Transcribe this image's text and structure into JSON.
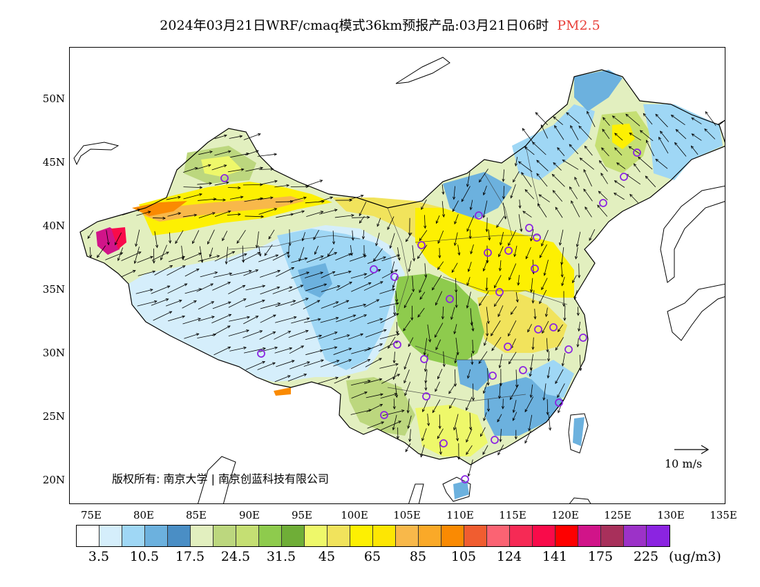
{
  "title": {
    "main": "2024年03月21日WRF/cmaq模式36km预报产品:03月21日06时",
    "variable": "PM2.5"
  },
  "map": {
    "lat_labels": [
      "50N",
      "45N",
      "40N",
      "35N",
      "30N",
      "25N",
      "20N"
    ],
    "lon_labels": [
      "75E",
      "80E",
      "85E",
      "90E",
      "95E",
      "100E",
      "105E",
      "110E",
      "115E",
      "120E",
      "125E",
      "130E",
      "135E"
    ],
    "copyright": "版权所有: 南京大学 | 南京创蓝科技有限公司",
    "wind_reference": "10 m/s",
    "icons": [
      "wind-vector-arrow",
      "station-circle-marker",
      "reference-arrow"
    ]
  },
  "legend": {
    "colors": [
      "#ffffff",
      "#d5eefb",
      "#9fd7f5",
      "#6cb1de",
      "#4a8ec5",
      "#e2efbf",
      "#bcd77e",
      "#c5df73",
      "#8ecb4d",
      "#6fae37",
      "#eef86a",
      "#f1e35c",
      "#fdf002",
      "#fde603",
      "#f8b84a",
      "#faa928",
      "#fa8a02",
      "#f05d30",
      "#fb6373",
      "#f62a55",
      "#f90b4a",
      "#fe0000",
      "#d11489",
      "#a8305b",
      "#9c32c8",
      "#8b24e1"
    ],
    "labels": [
      "3.5",
      "10.5",
      "17.5",
      "24.5",
      "31.5",
      "45",
      "65",
      "85",
      "105",
      "124",
      "141",
      "175",
      "225"
    ],
    "unit": "(ug/m3)"
  }
}
